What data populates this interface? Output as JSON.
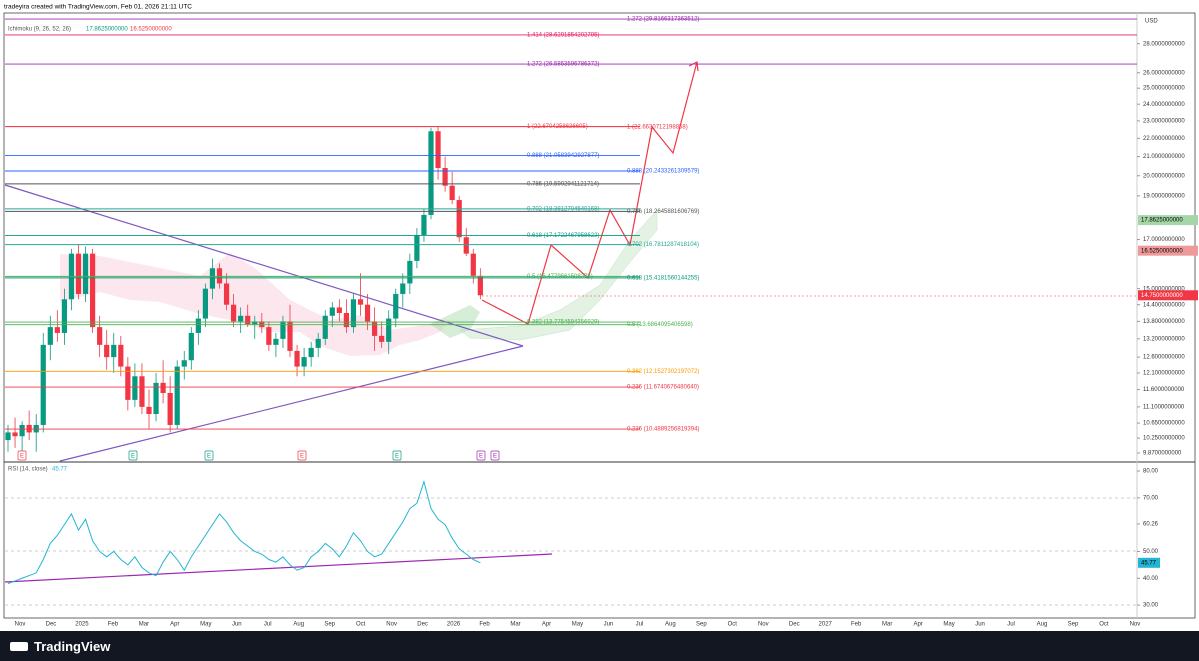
{
  "header": {
    "title": "tradeyira created with TradingView.com, Feb 01, 2026 21:11 UTC",
    "legend": "Ichimoku (9, 26, 52, 26)",
    "legend_values": [
      "17.8625000000",
      "16.5250000000"
    ]
  },
  "chart_data": [
    {
      "type": "candlestick",
      "currency": "USD",
      "log_scale": true,
      "ylim": [
        9.67,
        30.2
      ],
      "yticks": [
        {
          "value": 28,
          "label": "28.0000000000"
        },
        {
          "value": 26,
          "label": "26.0000000000"
        },
        {
          "value": 25,
          "label": "25.0000000000"
        },
        {
          "value": 24,
          "label": "24.0000000000"
        },
        {
          "value": 23,
          "label": "23.0000000000"
        },
        {
          "value": 22,
          "label": "22.0000000000"
        },
        {
          "value": 21,
          "label": "21.0000000000"
        },
        {
          "value": 20,
          "label": "20.0000000000"
        },
        {
          "value": 19,
          "label": "19.0000000000"
        },
        {
          "value": 17,
          "label": "17.0000000000"
        },
        {
          "value": 15,
          "label": "15.0000000000"
        },
        {
          "value": 14.4,
          "label": "14.4000000000"
        },
        {
          "value": 13.8,
          "label": "13.8000000000"
        },
        {
          "value": 13.2,
          "label": "13.2000000000"
        },
        {
          "value": 12.6,
          "label": "12.6000000000"
        },
        {
          "value": 12.1,
          "label": "12.1000000000"
        },
        {
          "value": 11.6,
          "label": "11.6000000000"
        },
        {
          "value": 11.1,
          "label": "11.1000000000"
        },
        {
          "value": 10.65,
          "label": "10.6500000000"
        },
        {
          "value": 10.25,
          "label": "10.2500000000"
        },
        {
          "value": 9.87,
          "label": "9.8700000000"
        }
      ],
      "xtick_labels": [
        "Nov",
        "Dec",
        "2025",
        "Feb",
        "Mar",
        "Apr",
        "May",
        "Jun",
        "Jul",
        "Aug",
        "Sep",
        "Oct",
        "Nov",
        "Dec",
        "2026",
        "Feb",
        "Mar",
        "Apr",
        "May",
        "Jun",
        "Jul",
        "Aug",
        "Sep",
        "Oct",
        "Nov",
        "Dec",
        "2027",
        "Feb",
        "Mar",
        "Apr",
        "May",
        "Jun",
        "Jul",
        "Aug",
        "Sep",
        "Oct",
        "Nov"
      ],
      "up_color": "#089981",
      "down_color": "#f23645",
      "open": [
        10.2,
        10.4,
        10.3,
        10.6,
        10.4,
        10.6,
        13.0,
        13.6,
        13.4,
        14.6,
        16.4,
        14.8,
        16.4,
        13.6,
        13.0,
        12.6,
        13.0,
        12.3,
        11.3,
        12.0,
        11.1,
        10.9,
        11.8,
        11.5,
        10.6,
        12.3,
        12.5,
        13.4,
        13.9,
        15.0,
        15.8,
        15.2,
        14.4,
        13.8,
        14.0,
        13.7,
        13.8,
        13.6,
        13.0,
        13.2,
        13.8,
        12.8,
        12.3,
        12.6,
        12.9,
        13.2,
        14.0,
        14.3,
        14.1,
        13.6,
        14.6,
        14.4,
        13.8,
        13.3,
        13.1,
        13.9,
        14.8,
        15.2,
        16.1,
        17.2,
        18.1,
        22.4,
        20.4,
        19.5,
        18.8,
        17.1,
        16.4,
        15.5
      ],
      "high": [
        10.6,
        10.8,
        10.7,
        11.0,
        10.9,
        13.4,
        14.0,
        14.2,
        15.0,
        16.6,
        16.8,
        16.7,
        16.6,
        14.0,
        13.5,
        13.4,
        13.3,
        12.6,
        12.4,
        12.4,
        11.6,
        12.1,
        12.5,
        12.0,
        12.5,
        12.8,
        13.6,
        14.2,
        15.2,
        16.2,
        16.0,
        15.6,
        14.8,
        14.3,
        14.4,
        14.0,
        14.1,
        13.8,
        13.4,
        14.0,
        14.4,
        13.0,
        12.9,
        13.1,
        13.4,
        14.2,
        14.5,
        14.6,
        14.6,
        14.8,
        15.6,
        14.8,
        14.3,
        13.8,
        14.2,
        15.0,
        15.6,
        16.4,
        17.5,
        18.4,
        22.6,
        22.7,
        21.0,
        20.2,
        19.0,
        17.5,
        16.6,
        15.8
      ],
      "low": [
        9.9,
        10.0,
        9.8,
        10.2,
        9.9,
        10.4,
        12.5,
        13.1,
        13.0,
        14.2,
        14.6,
        14.5,
        13.4,
        12.6,
        12.2,
        12.1,
        12.0,
        11.0,
        11.1,
        10.9,
        10.5,
        10.7,
        11.2,
        10.4,
        10.5,
        11.9,
        12.2,
        13.0,
        13.6,
        14.6,
        15.0,
        14.2,
        13.6,
        13.4,
        13.6,
        13.2,
        13.4,
        12.8,
        12.6,
        12.9,
        12.6,
        12.0,
        12.0,
        12.3,
        12.6,
        13.0,
        13.6,
        13.8,
        13.4,
        13.4,
        14.0,
        13.5,
        12.8,
        12.9,
        12.7,
        13.6,
        14.3,
        14.8,
        15.8,
        16.9,
        17.9,
        19.8,
        19.2,
        18.6,
        16.9,
        16.3,
        15.2,
        14.6
      ],
      "close": [
        10.4,
        10.3,
        10.6,
        10.4,
        10.6,
        13.0,
        13.6,
        13.4,
        14.6,
        16.4,
        14.8,
        16.4,
        13.6,
        13.0,
        12.6,
        13.0,
        12.3,
        11.3,
        12.0,
        11.1,
        10.9,
        11.8,
        11.5,
        10.6,
        12.3,
        12.5,
        13.4,
        13.9,
        15.0,
        15.8,
        15.2,
        14.4,
        13.8,
        14.0,
        13.7,
        13.8,
        13.6,
        13.0,
        13.2,
        13.8,
        12.8,
        12.3,
        12.6,
        12.9,
        13.2,
        14.0,
        14.3,
        14.1,
        13.6,
        14.6,
        14.4,
        13.8,
        13.3,
        13.1,
        13.9,
        14.8,
        15.2,
        16.1,
        17.2,
        18.1,
        22.4,
        20.4,
        19.5,
        18.8,
        17.1,
        16.4,
        15.5,
        14.75
      ],
      "fib_sets": [
        {
          "levels": [
            {
              "label": "1.414 (28.6291854202795)",
              "value": 28.6291854202795,
              "color": "#e91e63"
            },
            {
              "label": "1.272 (26.5853596786372)",
              "value": 26.5853596786372,
              "color": "#9c27b0"
            },
            {
              "label": "1 (22.6704258636605)",
              "value": 22.6704258636605,
              "color": "#f23645"
            },
            {
              "label": "0.888 (21.0583942927877)",
              "value": 21.0583942927877,
              "color": "#2962ff"
            },
            {
              "label": "0.786 (19.5902941121714)",
              "value": 19.5902941121714,
              "color": "#555555"
            },
            {
              "label": "0.702 (18.3812704540168)",
              "value": 18.3812704540168,
              "color": "#26a69a"
            },
            {
              "label": "0.618 (17.1722467958622)",
              "value": 17.1722467958622,
              "color": "#089981"
            },
            {
              "label": "0.5 (15.4779561508275)",
              "value": 15.4779561508275,
              "color": "#4caf50"
            },
            {
              "label": "0.382 (13.7754594356929)",
              "value": 13.7754594356929,
              "color": "#4caf50"
            }
          ]
        },
        {
          "levels": [
            {
              "label": "1.272 (29.8166317363512)",
              "value": 29.8166317363512,
              "color": "#9c27b0"
            },
            {
              "label": "1 (22.6630712198858)",
              "value": 22.6630712198858,
              "color": "#f23645"
            },
            {
              "label": "0.888 (20.2433261309579)",
              "value": 20.2433261309579,
              "color": "#2962ff"
            },
            {
              "label": "0.786 (18.2645881606769)",
              "value": 18.2645881606769,
              "color": "#555555"
            },
            {
              "label": "0.702 (16.7811287418104)",
              "value": 16.7811287418104,
              "color": "#26a69a"
            },
            {
              "label": "0.618 (15.4181560144255)",
              "value": 15.4181560144255,
              "color": "#089981"
            },
            {
              "label": "0.5 (13.6864095406598)",
              "value": 13.6864095406598,
              "color": "#4caf50"
            },
            {
              "label": "0.382 (12.1527302197072)",
              "value": 12.1527302197072,
              "color": "#ff9800"
            },
            {
              "label": "0.236 (11.6740676480640)",
              "value": 11.674067648064,
              "color": "#f23645"
            },
            {
              "label": "0.236 (10.4889256819394)",
              "value": 10.4889256819394,
              "color": "#f23645"
            }
          ]
        }
      ],
      "price_tags": [
        {
          "value": 17.8625,
          "label": "17.8625000000",
          "color": "#a5d6a7"
        },
        {
          "value": 16.525,
          "label": "16.5250000000",
          "color": "#ef9a9a"
        },
        {
          "value": 14.75,
          "label": "14.7500000000",
          "color": "#f23645"
        }
      ],
      "event_markers": [
        "E",
        "E",
        "E",
        "E",
        "E",
        "E",
        "E"
      ]
    },
    {
      "type": "line",
      "title": "RSI (14, close)",
      "color": "#22b5d4",
      "values": [
        38,
        39,
        40,
        41,
        42,
        47,
        53,
        56,
        60,
        64,
        58,
        62,
        54,
        50,
        48,
        50,
        47,
        45,
        48,
        44,
        42,
        41,
        46,
        50,
        47,
        43,
        48,
        52,
        56,
        60,
        64,
        61,
        57,
        54,
        52,
        50,
        49,
        47,
        46,
        48,
        45,
        43,
        44,
        48,
        50,
        53,
        51,
        48,
        52,
        57,
        54,
        50,
        48,
        49,
        53,
        57,
        61,
        66,
        68,
        76,
        66,
        62,
        60,
        55,
        51,
        49,
        47,
        45.77
      ],
      "value_label": "45.77",
      "ylim": [
        26.3,
        83
      ],
      "yticks": [
        {
          "value": 80,
          "label": "80.00"
        },
        {
          "value": 70,
          "label": "70.00"
        },
        {
          "value": 60.26,
          "label": "60.26"
        },
        {
          "value": 50,
          "label": "50.00"
        },
        {
          "value": 40,
          "label": "40.00"
        },
        {
          "value": 30,
          "label": "30.00"
        }
      ]
    }
  ],
  "footer": {
    "brand": "TradingView"
  }
}
